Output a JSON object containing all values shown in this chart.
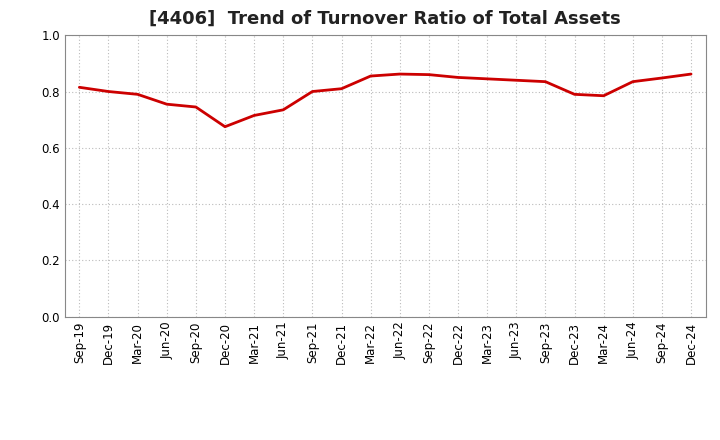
{
  "title": "[4406]  Trend of Turnover Ratio of Total Assets",
  "x_labels": [
    "Sep-19",
    "Dec-19",
    "Mar-20",
    "Jun-20",
    "Sep-20",
    "Dec-20",
    "Mar-21",
    "Jun-21",
    "Sep-21",
    "Dec-21",
    "Mar-22",
    "Jun-22",
    "Sep-22",
    "Dec-22",
    "Mar-23",
    "Jun-23",
    "Sep-23",
    "Dec-23",
    "Mar-24",
    "Jun-24",
    "Sep-24",
    "Dec-24"
  ],
  "y_values": [
    0.815,
    0.8,
    0.79,
    0.755,
    0.745,
    0.675,
    0.715,
    0.735,
    0.8,
    0.81,
    0.855,
    0.862,
    0.86,
    0.85,
    0.845,
    0.84,
    0.835,
    0.79,
    0.785,
    0.835,
    0.848,
    0.862
  ],
  "ylim": [
    0.0,
    1.0
  ],
  "yticks": [
    0.0,
    0.2,
    0.4,
    0.6,
    0.8,
    1.0
  ],
  "line_color": "#cc0000",
  "line_width": 2.0,
  "background_color": "#ffffff",
  "plot_bg_color": "#ffffff",
  "grid_color": "#bbbbbb",
  "title_fontsize": 13,
  "tick_fontsize": 8.5,
  "title_color": "#222222",
  "spine_color": "#888888"
}
